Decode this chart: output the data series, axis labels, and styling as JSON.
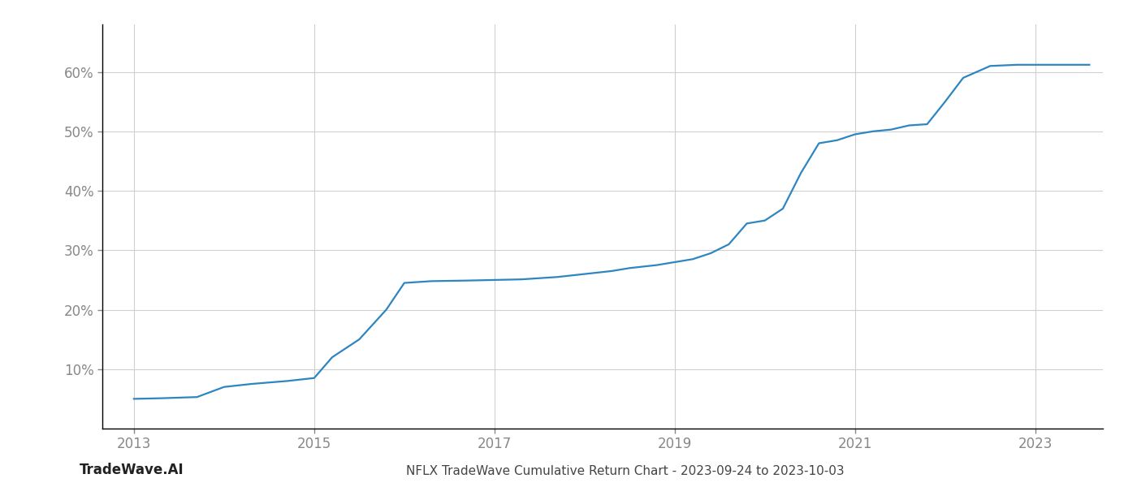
{
  "x_values": [
    2013.0,
    2013.3,
    2013.7,
    2014.0,
    2014.3,
    2014.7,
    2015.0,
    2015.2,
    2015.5,
    2015.8,
    2016.0,
    2016.3,
    2016.7,
    2017.0,
    2017.3,
    2017.5,
    2017.7,
    2018.0,
    2018.3,
    2018.5,
    2018.8,
    2019.0,
    2019.2,
    2019.4,
    2019.6,
    2019.8,
    2020.0,
    2020.2,
    2020.4,
    2020.6,
    2020.8,
    2021.0,
    2021.2,
    2021.4,
    2021.6,
    2021.8,
    2022.0,
    2022.2,
    2022.5,
    2022.8,
    2023.0,
    2023.3,
    2023.6
  ],
  "y_values": [
    5.0,
    5.1,
    5.3,
    7.0,
    7.5,
    8.0,
    8.5,
    12.0,
    15.0,
    20.0,
    24.5,
    24.8,
    24.9,
    25.0,
    25.1,
    25.3,
    25.5,
    26.0,
    26.5,
    27.0,
    27.5,
    28.0,
    28.5,
    29.5,
    31.0,
    34.5,
    35.0,
    37.0,
    43.0,
    48.0,
    48.5,
    49.5,
    50.0,
    50.3,
    51.0,
    51.2,
    55.0,
    59.0,
    61.0,
    61.2,
    61.2,
    61.2,
    61.2
  ],
  "line_color": "#2e86c1",
  "line_width": 1.6,
  "title": "NFLX TradeWave Cumulative Return Chart - 2023-09-24 to 2023-10-03",
  "watermark": "TradeWave.AI",
  "yticks": [
    10,
    20,
    30,
    40,
    50,
    60
  ],
  "xticks": [
    2013,
    2015,
    2017,
    2019,
    2021,
    2023
  ],
  "xlim": [
    2012.65,
    2023.75
  ],
  "ylim": [
    0,
    68
  ],
  "background_color": "#ffffff",
  "grid_color": "#d0d0d0",
  "title_fontsize": 11,
  "watermark_fontsize": 12,
  "tick_fontsize": 12,
  "tick_color": "#888888"
}
